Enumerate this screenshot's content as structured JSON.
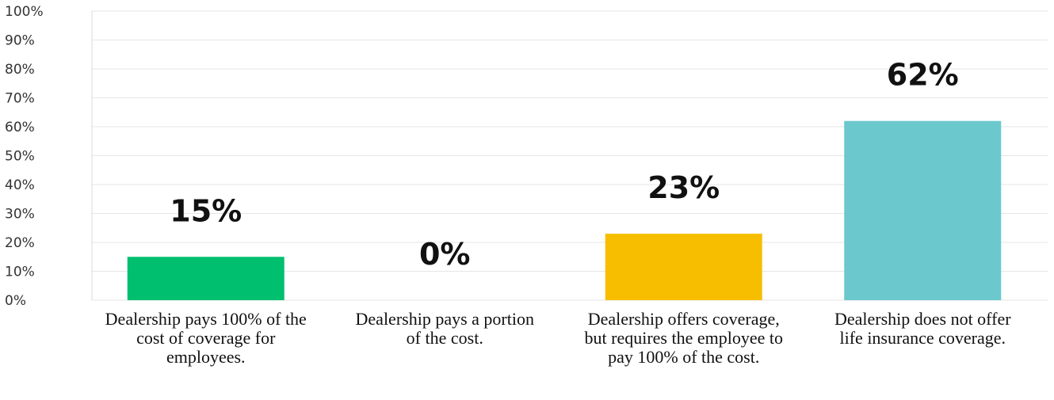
{
  "chart_data": {
    "type": "bar",
    "categories": [
      "Dealership pays 100% of the cost of coverage for employees.",
      "Dealership pays a portion of the cost.",
      "Dealership offers coverage, but requires the employee to pay 100% of the cost.",
      "Dealership does not offer life insurance coverage."
    ],
    "values": [
      15,
      0,
      23,
      62
    ],
    "data_labels": [
      "15%",
      "0%",
      "23%",
      "62%"
    ],
    "bar_colors": [
      "#00BF6F",
      "#E5E5E5",
      "#F7BE00",
      "#6BC8CD"
    ],
    "ylim": [
      0,
      100
    ],
    "yticks": [
      0,
      10,
      20,
      30,
      40,
      50,
      60,
      70,
      80,
      90,
      100
    ],
    "ytick_labels": [
      "0%",
      "10%",
      "20%",
      "30%",
      "40%",
      "50%",
      "60%",
      "70%",
      "80%",
      "90%",
      "100%"
    ],
    "grid": true,
    "gridline_color": "#E6E6E6",
    "title": "",
    "xlabel": "",
    "ylabel": ""
  }
}
